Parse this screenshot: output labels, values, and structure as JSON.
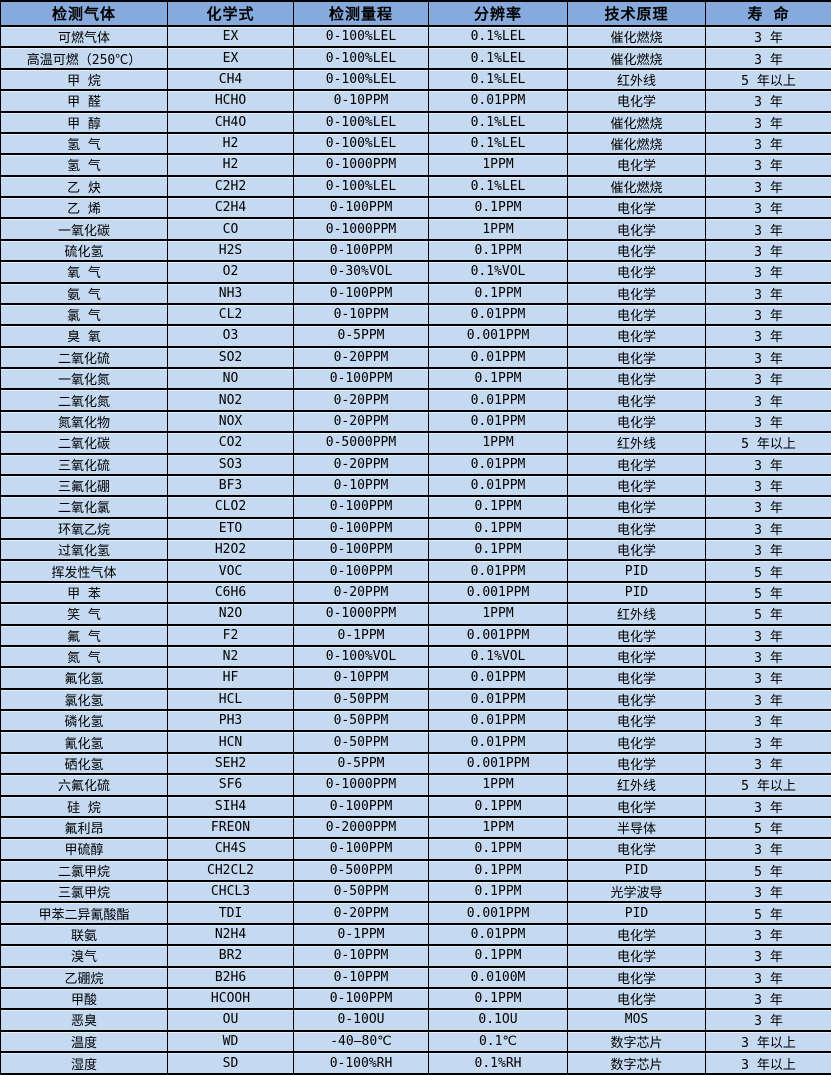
{
  "colors": {
    "header_bg": "#86aadc",
    "row_bg": "#c5d9f1",
    "border": "#000000",
    "text": "#000000"
  },
  "table": {
    "columns": [
      "检测气体",
      "化学式",
      "检测量程",
      "分辨率",
      "技术原理",
      "寿 命"
    ],
    "rows": [
      [
        "可燃气体",
        "EX",
        "0-100%LEL",
        "0.1%LEL",
        "催化燃烧",
        "3 年"
      ],
      [
        "高温可燃（250℃）",
        "EX",
        "0-100%LEL",
        "0.1%LEL",
        "催化燃烧",
        "3 年"
      ],
      [
        "甲 烷",
        "CH4",
        "0-100%LEL",
        "0.1%LEL",
        "红外线",
        "5 年以上"
      ],
      [
        "甲 醛",
        "HCHO",
        "0-10PPM",
        "0.01PPM",
        "电化学",
        "3 年"
      ],
      [
        "甲 醇",
        "CH4O",
        "0-100%LEL",
        "0.1%LEL",
        "催化燃烧",
        "3 年"
      ],
      [
        "氢 气",
        "H2",
        "0-100%LEL",
        "0.1%LEL",
        "催化燃烧",
        "3 年"
      ],
      [
        "氢 气",
        "H2",
        "0-1000PPM",
        "1PPM",
        "电化学",
        "3 年"
      ],
      [
        "乙 炔",
        "C2H2",
        "0-100%LEL",
        "0.1%LEL",
        "催化燃烧",
        "3 年"
      ],
      [
        "乙 烯",
        "C2H4",
        "0-100PPM",
        "0.1PPM",
        "电化学",
        "3 年"
      ],
      [
        "一氧化碳",
        "CO",
        "0-1000PPM",
        "1PPM",
        "电化学",
        "3 年"
      ],
      [
        "硫化氢",
        "H2S",
        "0-100PPM",
        "0.1PPM",
        "电化学",
        "3 年"
      ],
      [
        "氧 气",
        "O2",
        "0-30%VOL",
        "0.1%VOL",
        "电化学",
        "3 年"
      ],
      [
        "氨 气",
        "NH3",
        "0-100PPM",
        "0.1PPM",
        "电化学",
        "3 年"
      ],
      [
        "氯 气",
        "CL2",
        "0-10PPM",
        "0.01PPM",
        "电化学",
        "3 年"
      ],
      [
        "臭 氧",
        "O3",
        "0-5PPM",
        "0.001PPM",
        "电化学",
        "3 年"
      ],
      [
        "二氧化硫",
        "SO2",
        "0-20PPM",
        "0.01PPM",
        "电化学",
        "3 年"
      ],
      [
        "一氧化氮",
        "NO",
        "0-100PPM",
        "0.1PPM",
        "电化学",
        "3 年"
      ],
      [
        "二氧化氮",
        "NO2",
        "0-20PPM",
        "0.01PPM",
        "电化学",
        "3 年"
      ],
      [
        "氮氧化物",
        "NOX",
        "0-20PPM",
        "0.01PPM",
        "电化学",
        "3 年"
      ],
      [
        "二氧化碳",
        "CO2",
        "0-5000PPM",
        "1PPM",
        "红外线",
        "5 年以上"
      ],
      [
        "三氧化硫",
        "SO3",
        "0-20PPM",
        "0.01PPM",
        "电化学",
        "3 年"
      ],
      [
        "三氟化硼",
        "BF3",
        "0-10PPM",
        "0.01PPM",
        "电化学",
        "3 年"
      ],
      [
        "二氧化氯",
        "CLO2",
        "0-100PPM",
        "0.1PPM",
        "电化学",
        "3 年"
      ],
      [
        "环氧乙烷",
        "ETO",
        "0-100PPM",
        "0.1PPM",
        "电化学",
        "3 年"
      ],
      [
        "过氧化氢",
        "H2O2",
        "0-100PPM",
        "0.1PPM",
        "电化学",
        "3 年"
      ],
      [
        "挥发性气体",
        "VOC",
        "0-100PPM",
        "0.01PPM",
        "PID",
        "5 年"
      ],
      [
        "甲 苯",
        "C6H6",
        "0-20PPM",
        "0.001PPM",
        "PID",
        "5 年"
      ],
      [
        "笑 气",
        "N2O",
        "0-1000PPM",
        "1PPM",
        "红外线",
        "5 年"
      ],
      [
        "氟 气",
        "F2",
        "0-1PPM",
        "0.001PPM",
        "电化学",
        "3 年"
      ],
      [
        "氮 气",
        "N2",
        "0-100%VOL",
        "0.1%VOL",
        "电化学",
        "3 年"
      ],
      [
        "氟化氢",
        "HF",
        "0-10PPM",
        "0.01PPM",
        "电化学",
        "3 年"
      ],
      [
        "氯化氢",
        "HCL",
        "0-50PPM",
        "0.01PPM",
        "电化学",
        "3 年"
      ],
      [
        "磷化氢",
        "PH3",
        "0-50PPM",
        "0.01PPM",
        "电化学",
        "3 年"
      ],
      [
        "氰化氢",
        "HCN",
        "0-50PPM",
        "0.01PPM",
        "电化学",
        "3 年"
      ],
      [
        "硒化氢",
        "SEH2",
        "0-5PPM",
        "0.001PPM",
        "电化学",
        "3 年"
      ],
      [
        "六氟化硫",
        "SF6",
        "0-1000PPM",
        "1PPM",
        "红外线",
        "5 年以上"
      ],
      [
        "硅 烷",
        "SIH4",
        "0-100PPM",
        "0.1PPM",
        "电化学",
        "3 年"
      ],
      [
        "氟利昂",
        "FREON",
        "0-2000PPM",
        "1PPM",
        "半导体",
        "5 年"
      ],
      [
        "甲硫醇",
        "CH4S",
        "0-100PPM",
        "0.1PPM",
        "电化学",
        "3 年"
      ],
      [
        "二氯甲烷",
        "CH2CL2",
        "0-500PPM",
        "0.1PPM",
        "PID",
        "5 年"
      ],
      [
        "三氯甲烷",
        "CHCL3",
        "0-50PPM",
        "0.1PPM",
        "光学波导",
        "3 年"
      ],
      [
        "甲苯二异氰酸酯",
        "TDI",
        "0-20PPM",
        "0.001PPM",
        "PID",
        "5 年"
      ],
      [
        "联氨",
        "N2H4",
        "0-1PPM",
        "0.01PPM",
        "电化学",
        "3 年"
      ],
      [
        "溴气",
        "BR2",
        "0-10PPM",
        "0.1PPM",
        "电化学",
        "3 年"
      ],
      [
        "乙硼烷",
        "B2H6",
        "0-10PPM",
        "0.0100M",
        "电化学",
        "3 年"
      ],
      [
        "甲酸",
        "HCOOH",
        "0-100PPM",
        "0.1PPM",
        "电化学",
        "3 年"
      ],
      [
        "恶臭",
        "OU",
        "0-10OU",
        "0.1OU",
        "MOS",
        "3 年"
      ],
      [
        "温度",
        "WD",
        "-40—80℃",
        "0.1℃",
        "数字芯片",
        "3 年以上"
      ],
      [
        "湿度",
        "SD",
        "0-100%RH",
        "0.1%RH",
        "数字芯片",
        "3 年以上"
      ]
    ]
  }
}
